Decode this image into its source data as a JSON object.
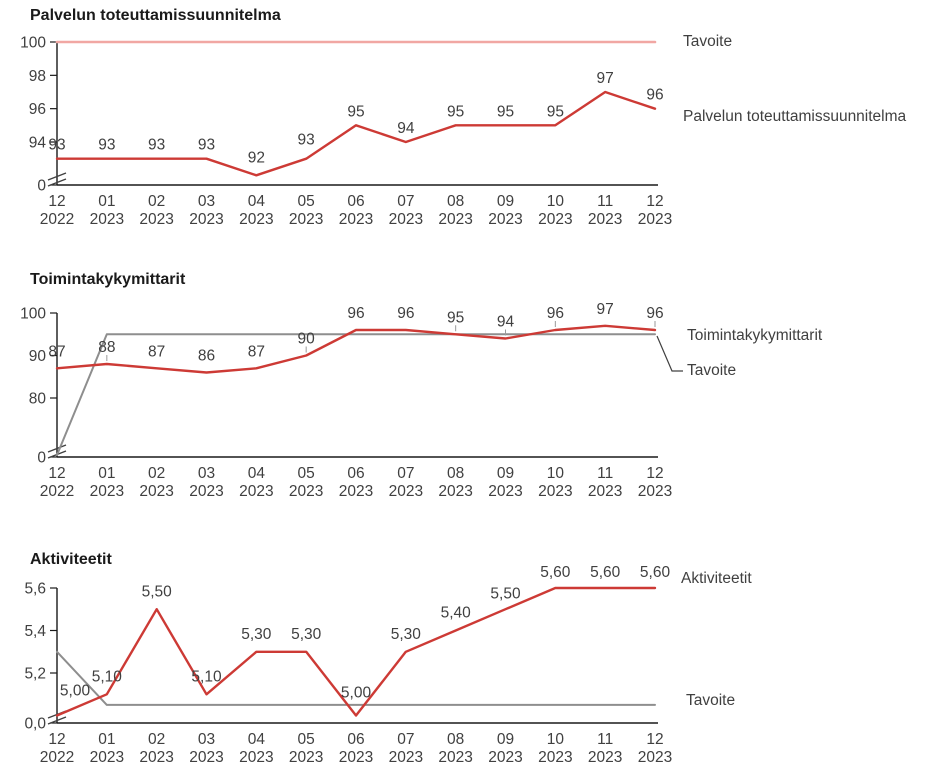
{
  "colors": {
    "red": "#cd3a35",
    "pink": "#f1a7a3",
    "gray": "#8e8e8e",
    "axis": "#1a1a1a",
    "text": "#404040",
    "leader": "#9a9a9a",
    "connector": "#404040"
  },
  "chart_data": [
    {
      "type": "line",
      "title": "Palvelun toteuttamissuunnitelma",
      "legend_position": "right",
      "grid": false,
      "axis_break": true,
      "ylim": [
        0,
        100
      ],
      "yticks": [
        {
          "label": "100",
          "value": 100
        },
        {
          "label": "98",
          "value": 98
        },
        {
          "label": "96",
          "value": 96
        },
        {
          "label": "94",
          "value": 94
        },
        {
          "label": "0",
          "value": 0,
          "at_axis": true
        }
      ],
      "categories": [
        {
          "month": "12",
          "year": "2022"
        },
        {
          "month": "01",
          "year": "2023"
        },
        {
          "month": "02",
          "year": "2023"
        },
        {
          "month": "03",
          "year": "2023"
        },
        {
          "month": "04",
          "year": "2023"
        },
        {
          "month": "05",
          "year": "2023"
        },
        {
          "month": "06",
          "year": "2023"
        },
        {
          "month": "07",
          "year": "2023"
        },
        {
          "month": "08",
          "year": "2023"
        },
        {
          "month": "09",
          "year": "2023"
        },
        {
          "month": "10",
          "year": "2023"
        },
        {
          "month": "11",
          "year": "2023"
        },
        {
          "month": "12",
          "year": "2023"
        }
      ],
      "series": [
        {
          "name": "Tavoite",
          "color": "#f1a7a3",
          "width": 2.6,
          "show_labels": false,
          "values": [
            100,
            100,
            100,
            100,
            100,
            100,
            100,
            100,
            100,
            100,
            100,
            100,
            100
          ]
        },
        {
          "name": "Palvelun toteuttamissuunnitelma",
          "color": "#cd3a35",
          "width": 2.4,
          "show_labels": true,
          "values": [
            93,
            93,
            93,
            93,
            92,
            93,
            95,
            94,
            95,
            95,
            95,
            97,
            96
          ],
          "value_labels": [
            "93",
            "93",
            "93",
            "93",
            "92",
            "93",
            "95",
            "94",
            "95",
            "95",
            "95",
            "97",
            "96"
          ]
        }
      ]
    },
    {
      "type": "line",
      "title": "Toimintakykymittarit",
      "legend_position": "right",
      "grid": false,
      "axis_break": true,
      "ylim": [
        0,
        100
      ],
      "yticks": [
        {
          "label": "100",
          "value": 100
        },
        {
          "label": "90",
          "value": 90
        },
        {
          "label": "80",
          "value": 80
        },
        {
          "label": "0",
          "value": 0,
          "at_axis": true
        }
      ],
      "categories": [
        {
          "month": "12",
          "year": "2022"
        },
        {
          "month": "01",
          "year": "2023"
        },
        {
          "month": "02",
          "year": "2023"
        },
        {
          "month": "03",
          "year": "2023"
        },
        {
          "month": "04",
          "year": "2023"
        },
        {
          "month": "05",
          "year": "2023"
        },
        {
          "month": "06",
          "year": "2023"
        },
        {
          "month": "07",
          "year": "2023"
        },
        {
          "month": "08",
          "year": "2023"
        },
        {
          "month": "09",
          "year": "2023"
        },
        {
          "month": "10",
          "year": "2023"
        },
        {
          "month": "11",
          "year": "2023"
        },
        {
          "month": "12",
          "year": "2023"
        }
      ],
      "series": [
        {
          "name": "Tavoite",
          "color": "#8e8e8e",
          "width": 2,
          "show_labels": false,
          "values": [
            0,
            95,
            95,
            95,
            95,
            95,
            95,
            95,
            95,
            95,
            95,
            95,
            95
          ]
        },
        {
          "name": "Toimintakykymittarit",
          "color": "#cd3a35",
          "width": 2.4,
          "show_labels": true,
          "values": [
            87,
            88,
            87,
            86,
            87,
            90,
            96,
            96,
            95,
            94,
            96,
            97,
            96
          ],
          "value_labels": [
            "87",
            "88",
            "87",
            "86",
            "87",
            "90",
            "96",
            "96",
            "95",
            "94",
            "96",
            "97",
            "96"
          ]
        }
      ]
    },
    {
      "type": "line",
      "title": "Aktiviteetit",
      "legend_position": "right",
      "grid": false,
      "axis_break": true,
      "ylim": [
        0,
        5.6
      ],
      "yticks": [
        {
          "label": "5,6",
          "value": 5.6
        },
        {
          "label": "5,4",
          "value": 5.4
        },
        {
          "label": "5,2",
          "value": 5.2
        },
        {
          "label": "0,0",
          "value": 0,
          "at_axis": true
        }
      ],
      "categories": [
        {
          "month": "12",
          "year": "2022"
        },
        {
          "month": "01",
          "year": "2023"
        },
        {
          "month": "02",
          "year": "2023"
        },
        {
          "month": "03",
          "year": "2023"
        },
        {
          "month": "04",
          "year": "2023"
        },
        {
          "month": "05",
          "year": "2023"
        },
        {
          "month": "06",
          "year": "2023"
        },
        {
          "month": "07",
          "year": "2023"
        },
        {
          "month": "08",
          "year": "2023"
        },
        {
          "month": "09",
          "year": "2023"
        },
        {
          "month": "10",
          "year": "2023"
        },
        {
          "month": "11",
          "year": "2023"
        },
        {
          "month": "12",
          "year": "2023"
        }
      ],
      "series": [
        {
          "name": "Tavoite",
          "color": "#8e8e8e",
          "width": 2,
          "show_labels": false,
          "values": [
            5.3,
            5.05,
            5.05,
            5.05,
            5.05,
            5.05,
            5.05,
            5.05,
            5.05,
            5.05,
            5.05,
            5.05,
            5.05
          ]
        },
        {
          "name": "Aktiviteetit",
          "color": "#cd3a35",
          "width": 2.4,
          "show_labels": true,
          "values": [
            5.0,
            5.1,
            5.5,
            5.1,
            5.3,
            5.3,
            5.0,
            5.3,
            5.4,
            5.5,
            5.6,
            5.6,
            5.6
          ],
          "value_labels": [
            "5,00",
            "5,10",
            "5,50",
            "5,10",
            "5,30",
            "5,30",
            "5,00",
            "5,30",
            "5,40",
            "5,50",
            "5,60",
            "5,60",
            "5,60"
          ]
        }
      ]
    }
  ]
}
